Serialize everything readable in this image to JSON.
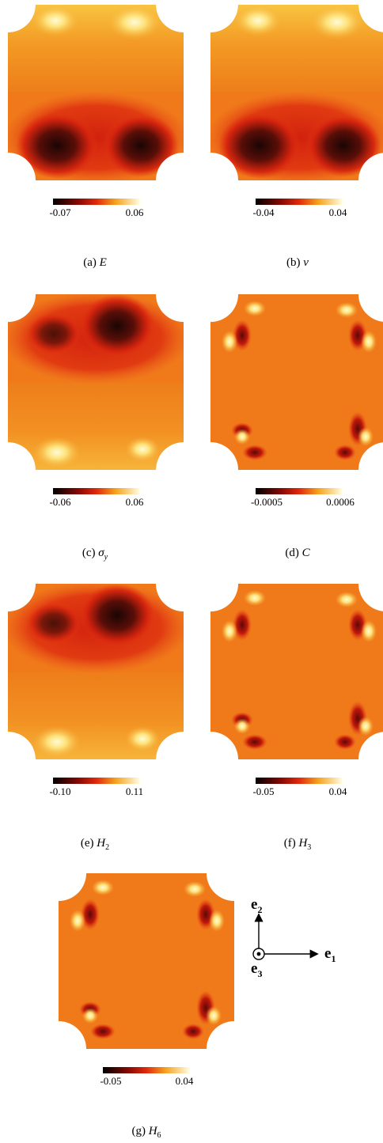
{
  "panels": [
    {
      "id": "a",
      "caption_prefix": "(a)",
      "symbol": "E",
      "symbol_sub": "",
      "min_label": "-0.07",
      "max_label": "0.06",
      "pattern": "bottom-dark"
    },
    {
      "id": "b",
      "caption_prefix": "(b)",
      "symbol": "ν",
      "symbol_sub": "",
      "min_label": "-0.04",
      "max_label": "0.04",
      "pattern": "bottom-dark"
    },
    {
      "id": "c",
      "caption_prefix": "(c)",
      "symbol": "σ",
      "symbol_sub": "y",
      "min_label": "-0.06",
      "max_label": "0.06",
      "pattern": "top-dark"
    },
    {
      "id": "d",
      "caption_prefix": "(d)",
      "symbol": "C",
      "symbol_sub": "",
      "min_label": "-0.0005",
      "max_label": "0.0006",
      "pattern": "corner-spots"
    },
    {
      "id": "e",
      "caption_prefix": "(e)",
      "symbol": "H",
      "symbol_sub": "2",
      "min_label": "-0.10",
      "max_label": "0.11",
      "pattern": "top-dark"
    },
    {
      "id": "f",
      "caption_prefix": "(f)",
      "symbol": "H",
      "symbol_sub": "3",
      "min_label": "-0.05",
      "max_label": "0.04",
      "pattern": "corner-spots"
    },
    {
      "id": "g",
      "caption_prefix": "(g)",
      "symbol": "H",
      "symbol_sub": "6",
      "min_label": "-0.05",
      "max_label": "0.04",
      "pattern": "corner-spots"
    }
  ],
  "axes": {
    "e1": "e",
    "e1_sub": "1",
    "e2": "e",
    "e2_sub": "2",
    "e3": "e",
    "e3_sub": "3"
  },
  "colors": {
    "base_orange": "#f07a1a",
    "dark_red": "#c41a10",
    "black": "#1a0604",
    "light_yellow": "#fff3b0"
  }
}
